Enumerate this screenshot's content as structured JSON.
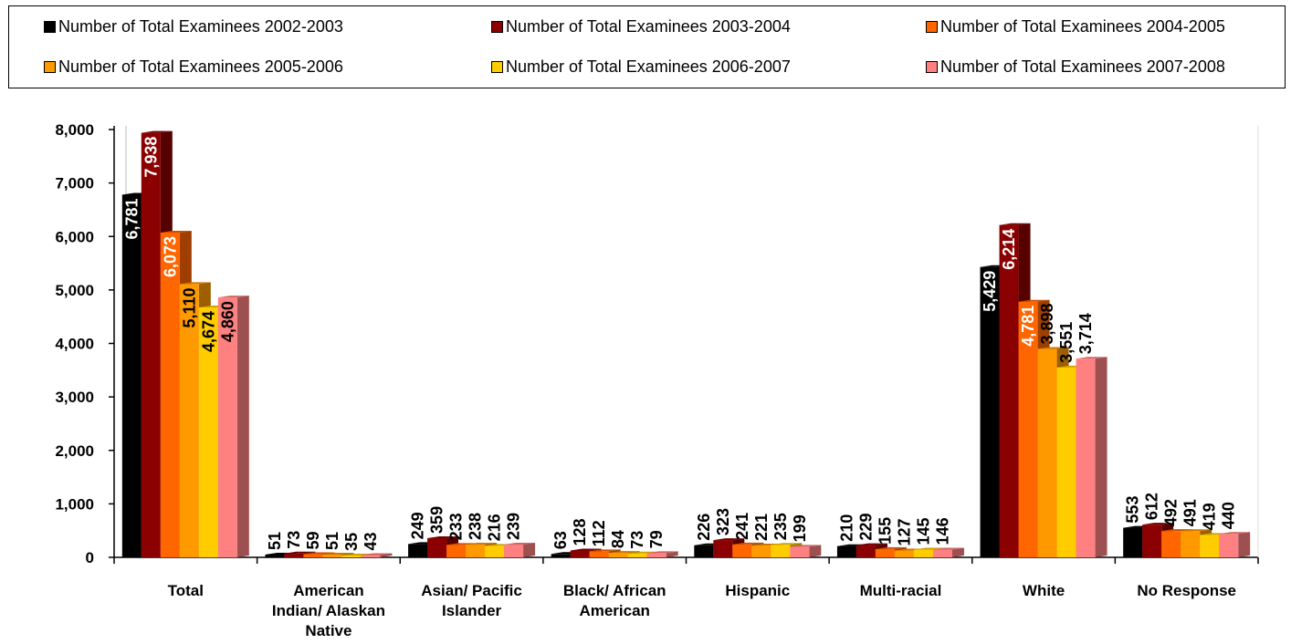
{
  "chart_data": {
    "type": "bar",
    "title": "",
    "xlabel": "",
    "ylabel": "",
    "ylim": [
      0,
      8000
    ],
    "yticks": [
      "0",
      "1,000",
      "2,000",
      "3,000",
      "4,000",
      "5,000",
      "6,000",
      "7,000",
      "8,000"
    ],
    "grid": false,
    "legend_position": "top",
    "categories": [
      "Total",
      "American Indian/ Alaskan Native",
      "Asian/ Pacific Islander",
      "Black/ African American",
      "Hispanic",
      "Multi-racial",
      "White",
      "No Response"
    ],
    "series": [
      {
        "name": "Number of Total Examinees 2002-2003",
        "color": "#000000",
        "values": [
          6781,
          51,
          249,
          63,
          226,
          210,
          5429,
          553
        ],
        "labels": [
          "6,781",
          "51",
          "249",
          "63",
          "226",
          "210",
          "5,429",
          "553"
        ]
      },
      {
        "name": "Number of Total Examinees 2003-2004",
        "color": "#8B0000",
        "values": [
          7938,
          73,
          359,
          128,
          323,
          229,
          6214,
          612
        ],
        "labels": [
          "7,938",
          "73",
          "359",
          "128",
          "323",
          "229",
          "6,214",
          "612"
        ]
      },
      {
        "name": "Number of Total Examinees 2004-2005",
        "color": "#FF6600",
        "values": [
          6073,
          59,
          233,
          112,
          241,
          155,
          4781,
          492
        ],
        "labels": [
          "6,073",
          "59",
          "233",
          "112",
          "241",
          "155",
          "4,781",
          "492"
        ]
      },
      {
        "name": "Number of Total Examinees 2005-2006",
        "color": "#FF9900",
        "values": [
          5110,
          51,
          238,
          84,
          221,
          127,
          3898,
          491
        ],
        "labels": [
          "5,110",
          "51",
          "238",
          "84",
          "221",
          "127",
          "3,898",
          "491"
        ]
      },
      {
        "name": "Number of Total Examinees 2006-2007",
        "color": "#FFCC00",
        "values": [
          4674,
          35,
          216,
          73,
          235,
          145,
          3551,
          419
        ],
        "labels": [
          "4,674",
          "35",
          "216",
          "73",
          "235",
          "145",
          "3,551",
          "419"
        ]
      },
      {
        "name": "Number of Total Examinees 2007-2008",
        "color": "#FF8080",
        "values": [
          4860,
          43,
          239,
          79,
          199,
          146,
          3714,
          440
        ],
        "labels": [
          "4,860",
          "43",
          "239",
          "79",
          "199",
          "146",
          "3,714",
          "440"
        ]
      }
    ]
  }
}
